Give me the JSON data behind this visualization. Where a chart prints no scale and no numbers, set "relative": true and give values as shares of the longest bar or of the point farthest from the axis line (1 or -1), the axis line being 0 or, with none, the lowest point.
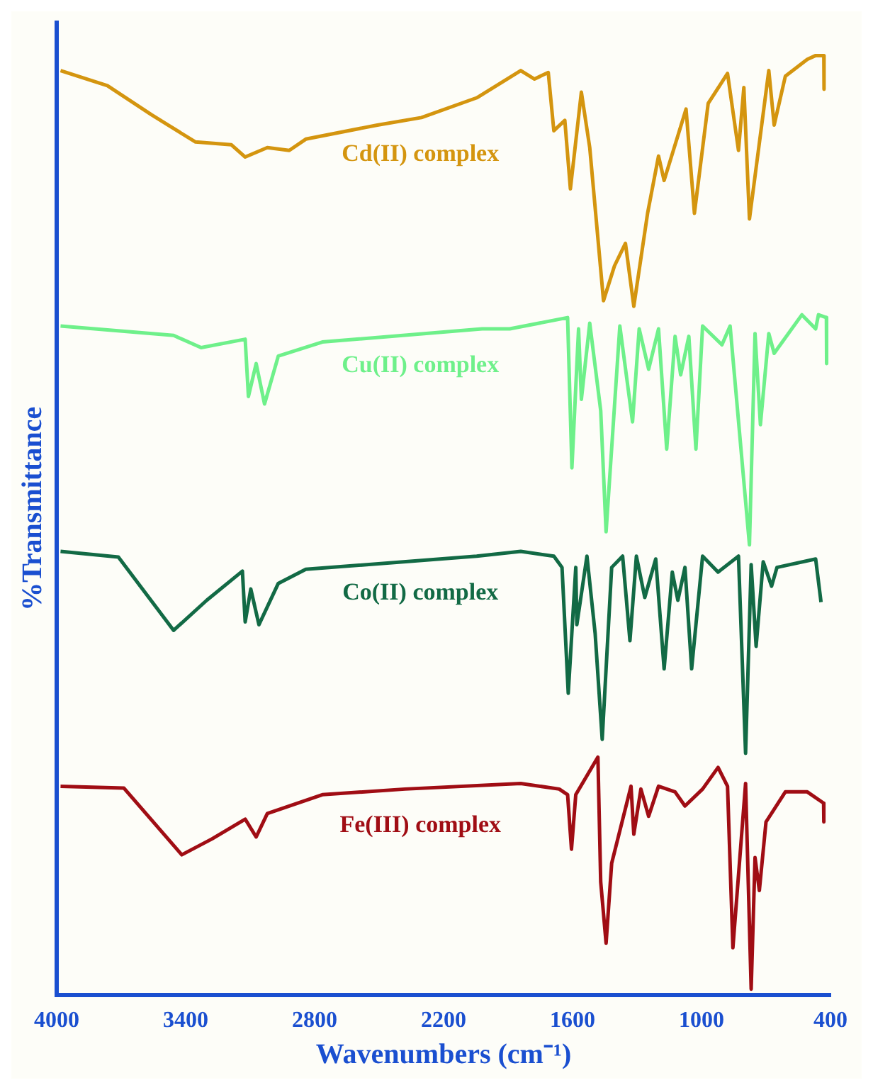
{
  "chart_data": {
    "type": "line",
    "relative": true,
    "xlabel": "Wavenumbers (cm⁻¹)",
    "ylabel": "%Transmittance",
    "xlim": [
      4000,
      400
    ],
    "xticks": [
      4000,
      3400,
      2800,
      2200,
      1600,
      1000,
      400
    ],
    "grid": false,
    "legend": false,
    "marker": "none",
    "line_style": "solid",
    "series": [
      {
        "name": "Cd(II) complex",
        "color": "#d4950f",
        "x": [
          3982,
          3764,
          3559,
          3482,
          3354,
          3187,
          3123,
          3020,
          2918,
          2841,
          2508,
          2303,
          2046,
          1841,
          1777,
          1713,
          1687,
          1636,
          1610,
          1559,
          1520,
          1456,
          1405,
          1354,
          1315,
          1251,
          1200,
          1174,
          1072,
          1033,
          969,
          879,
          828,
          803,
          777,
          687,
          662,
          610,
          508,
          469,
          431,
          430
        ],
        "values": [
          0.984,
          0.968,
          0.937,
          0.926,
          0.908,
          0.905,
          0.892,
          0.902,
          0.899,
          0.911,
          0.926,
          0.934,
          0.955,
          0.984,
          0.975,
          0.982,
          0.92,
          0.931,
          0.858,
          0.961,
          0.902,
          0.739,
          0.776,
          0.8,
          0.733,
          0.832,
          0.893,
          0.867,
          0.943,
          0.832,
          0.949,
          0.981,
          0.899,
          0.966,
          0.826,
          0.984,
          0.926,
          0.978,
          0.996,
          1.0,
          1.0,
          0.964
        ]
      },
      {
        "name": "Cu(II) complex",
        "color": "#6ef08a",
        "x": [
          3982,
          3456,
          3328,
          3123,
          3108,
          3072,
          3033,
          2969,
          2764,
          2021,
          1892,
          1623,
          1603,
          1572,
          1559,
          1520,
          1469,
          1444,
          1380,
          1321,
          1290,
          1246,
          1200,
          1162,
          1123,
          1097,
          1059,
          1026,
          995,
          905,
          867,
          777,
          751,
          726,
          687,
          662,
          533,
          469,
          456,
          419,
          418
        ],
        "values": [
          0.712,
          0.702,
          0.689,
          0.698,
          0.637,
          0.672,
          0.629,
          0.68,
          0.695,
          0.709,
          0.709,
          0.721,
          0.561,
          0.709,
          0.634,
          0.715,
          0.622,
          0.493,
          0.712,
          0.61,
          0.709,
          0.666,
          0.709,
          0.581,
          0.701,
          0.66,
          0.701,
          0.581,
          0.712,
          0.692,
          0.712,
          0.479,
          0.704,
          0.607,
          0.704,
          0.683,
          0.724,
          0.709,
          0.724,
          0.721,
          0.672
        ]
      },
      {
        "name": "Co(II) complex",
        "color": "#126a45",
        "x": [
          3982,
          3713,
          3456,
          3302,
          3136,
          3123,
          3097,
          3059,
          2969,
          2841,
          2046,
          1841,
          1687,
          1649,
          1620,
          1585,
          1580,
          1533,
          1495,
          1462,
          1418,
          1367,
          1333,
          1303,
          1264,
          1213,
          1174,
          1136,
          1110,
          1077,
          1046,
          995,
          923,
          828,
          795,
          769,
          746,
          713,
          674,
          649,
          469,
          444
        ],
        "values": [
          0.472,
          0.466,
          0.388,
          0.42,
          0.451,
          0.397,
          0.432,
          0.394,
          0.438,
          0.453,
          0.467,
          0.472,
          0.467,
          0.455,
          0.321,
          0.455,
          0.394,
          0.467,
          0.385,
          0.272,
          0.455,
          0.467,
          0.377,
          0.467,
          0.423,
          0.464,
          0.347,
          0.45,
          0.42,
          0.455,
          0.347,
          0.467,
          0.45,
          0.467,
          0.257,
          0.458,
          0.371,
          0.461,
          0.435,
          0.455,
          0.464,
          0.418
        ]
      },
      {
        "name": "Fe(III) complex",
        "color": "#a00d14",
        "x": [
          3982,
          3687,
          3418,
          3277,
          3123,
          3072,
          3020,
          2764,
          2380,
          1841,
          1662,
          1623,
          1605,
          1585,
          1482,
          1469,
          1444,
          1418,
          1328,
          1315,
          1282,
          1246,
          1200,
          1123,
          1077,
          995,
          923,
          879,
          854,
          795,
          769,
          751,
          731,
          700,
          610,
          508,
          432,
          431
        ],
        "values": [
          0.222,
          0.22,
          0.149,
          0.166,
          0.187,
          0.168,
          0.193,
          0.213,
          0.219,
          0.225,
          0.219,
          0.213,
          0.155,
          0.213,
          0.253,
          0.12,
          0.055,
          0.14,
          0.222,
          0.171,
          0.219,
          0.19,
          0.222,
          0.216,
          0.201,
          0.219,
          0.242,
          0.222,
          0.05,
          0.225,
          0.006,
          0.146,
          0.111,
          0.184,
          0.216,
          0.216,
          0.204,
          0.184
        ]
      }
    ]
  }
}
